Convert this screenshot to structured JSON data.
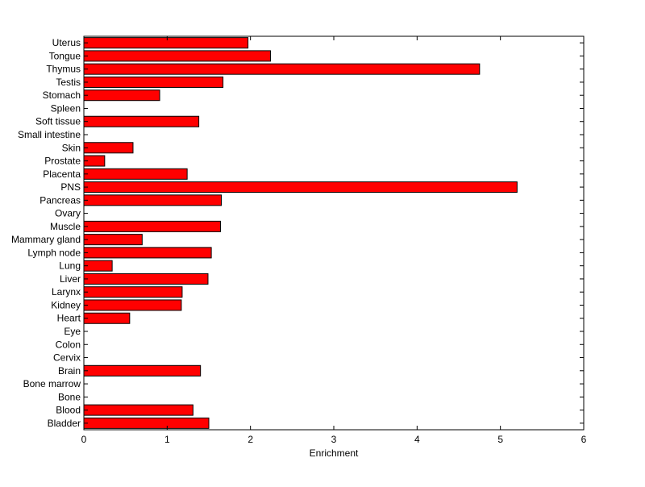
{
  "chart_data": {
    "type": "bar",
    "orientation": "horizontal",
    "title": "",
    "xlabel": "Enrichment",
    "ylabel": "",
    "xlim": [
      0,
      6
    ],
    "xticks": [
      "0",
      "1",
      "2",
      "3",
      "4",
      "5",
      "6"
    ],
    "grid": false,
    "legend": "none",
    "bar_color": "#ff0000",
    "bar_edge_color": "#000000",
    "categories": [
      "Uterus",
      "Tongue",
      "Thymus",
      "Testis",
      "Stomach",
      "Spleen",
      "Soft tissue",
      "Small intestine",
      "Skin",
      "Prostate",
      "Placenta",
      "PNS",
      "Pancreas",
      "Ovary",
      "Muscle",
      "Mammary gland",
      "Lymph node",
      "Lung",
      "Liver",
      "Larynx",
      "Kidney",
      "Heart",
      "Eye",
      "Colon",
      "Cervix",
      "Brain",
      "Bone marrow",
      "Bone",
      "Blood",
      "Bladder"
    ],
    "values": [
      1.97,
      2.24,
      4.75,
      1.67,
      0.91,
      0,
      1.38,
      0,
      0.59,
      0.25,
      1.24,
      5.2,
      1.65,
      0,
      1.64,
      0.7,
      1.53,
      0.34,
      1.49,
      1.18,
      1.17,
      0.55,
      0,
      0,
      0,
      1.4,
      0,
      0,
      1.31,
      1.5
    ]
  }
}
